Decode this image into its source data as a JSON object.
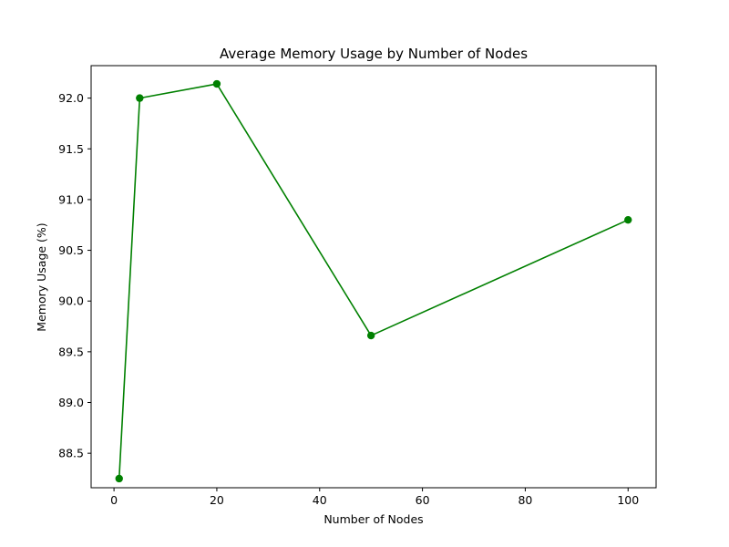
{
  "chart_data": {
    "type": "line",
    "title": "Average Memory Usage by Number of Nodes",
    "xlabel": "Number of Nodes",
    "ylabel": "Memory Usage (%)",
    "xlim": [
      -4.45,
      105.45
    ],
    "ylim": [
      88.16,
      92.32
    ],
    "xticks": [
      0,
      20,
      40,
      60,
      80,
      100
    ],
    "yticks": [
      88.5,
      89.0,
      89.5,
      90.0,
      90.5,
      91.0,
      91.5,
      92.0
    ],
    "xtick_labels": [
      "0",
      "20",
      "40",
      "60",
      "80",
      "100"
    ],
    "ytick_labels": [
      "88.5",
      "89.0",
      "89.5",
      "90.0",
      "90.5",
      "91.0",
      "91.5",
      "92.0"
    ],
    "grid": false,
    "series": [
      {
        "color": "#008000",
        "marker": "circle",
        "x": [
          1,
          5,
          20,
          50,
          100
        ],
        "y": [
          88.25,
          92.0,
          92.14,
          89.66,
          90.8
        ]
      }
    ]
  }
}
